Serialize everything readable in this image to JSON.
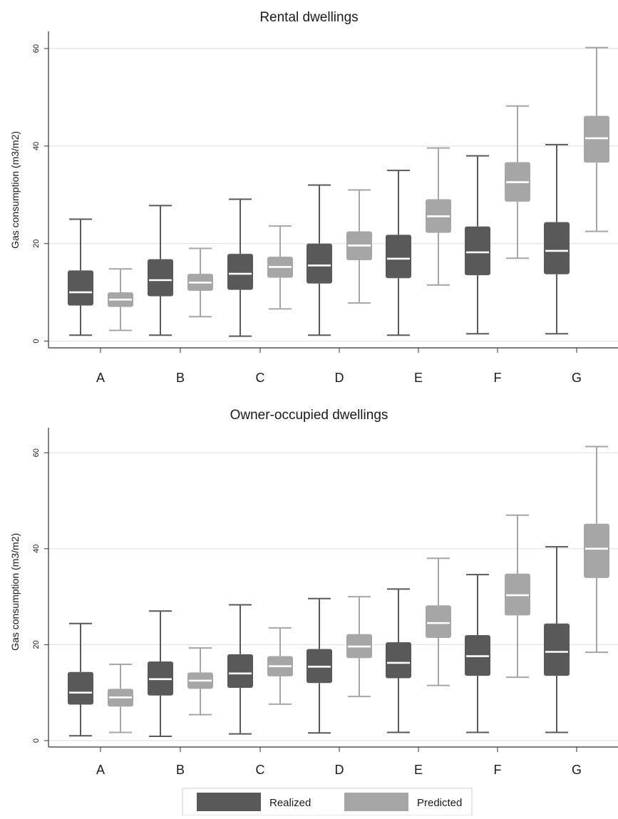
{
  "colors": {
    "realized": "#595959",
    "predicted": "#a6a6a6",
    "median": "#ffffff",
    "grid": "#e3e3e3",
    "axis": "#333333"
  },
  "legend": {
    "realized_label": "Realized",
    "predicted_label": "Predicted"
  },
  "chart_data": [
    {
      "type": "box",
      "title": "Rental dwellings",
      "ylabel": "Gas consumption (m3/m2)",
      "ylim": [
        -2,
        64
      ],
      "yticks": [
        0,
        20,
        40,
        60
      ],
      "ytick_labels": [
        "0",
        "20",
        "40",
        "60"
      ],
      "grid": true,
      "categories": [
        "A",
        "B",
        "C",
        "D",
        "E",
        "F",
        "G"
      ],
      "series": [
        {
          "name": "Realized",
          "boxes": [
            {
              "min": 1.2,
              "q1": 7.3,
              "median": 10.0,
              "q3": 14.5,
              "max": 25.0
            },
            {
              "min": 1.2,
              "q1": 9.2,
              "median": 12.5,
              "q3": 16.8,
              "max": 27.8
            },
            {
              "min": 1.0,
              "q1": 10.5,
              "median": 13.8,
              "q3": 17.9,
              "max": 29.1
            },
            {
              "min": 1.2,
              "q1": 11.8,
              "median": 15.5,
              "q3": 20.0,
              "max": 32.0
            },
            {
              "min": 1.2,
              "q1": 12.9,
              "median": 16.9,
              "q3": 21.8,
              "max": 35.0
            },
            {
              "min": 1.5,
              "q1": 13.5,
              "median": 18.2,
              "q3": 23.5,
              "max": 38.0
            },
            {
              "min": 1.5,
              "q1": 13.7,
              "median": 18.5,
              "q3": 24.4,
              "max": 40.3
            }
          ]
        },
        {
          "name": "Predicted",
          "boxes": [
            {
              "min": 2.2,
              "q1": 7.0,
              "median": 8.5,
              "q3": 10.0,
              "max": 14.8
            },
            {
              "min": 5.0,
              "q1": 10.3,
              "median": 12.0,
              "q3": 13.8,
              "max": 19.0
            },
            {
              "min": 6.6,
              "q1": 13.0,
              "median": 15.2,
              "q3": 17.3,
              "max": 23.6
            },
            {
              "min": 7.8,
              "q1": 16.6,
              "median": 19.6,
              "q3": 22.5,
              "max": 31.0
            },
            {
              "min": 11.5,
              "q1": 22.2,
              "median": 25.6,
              "q3": 29.1,
              "max": 39.6
            },
            {
              "min": 17.0,
              "q1": 28.6,
              "median": 32.6,
              "q3": 36.7,
              "max": 48.2
            },
            {
              "min": 22.5,
              "q1": 36.6,
              "median": 41.6,
              "q3": 46.2,
              "max": 60.2
            }
          ]
        }
      ]
    },
    {
      "type": "box",
      "title": "Owner-occupied dwellings",
      "ylabel": "Gas consumption (m3/m2)",
      "ylim": [
        -2,
        64
      ],
      "yticks": [
        0,
        20,
        40,
        60
      ],
      "ytick_labels": [
        "0",
        "20",
        "40",
        "60"
      ],
      "grid": true,
      "categories": [
        "A",
        "B",
        "C",
        "D",
        "E",
        "F",
        "G"
      ],
      "series": [
        {
          "name": "Realized",
          "boxes": [
            {
              "min": 1.0,
              "q1": 7.5,
              "median": 10.0,
              "q3": 14.3,
              "max": 24.4
            },
            {
              "min": 0.9,
              "q1": 9.4,
              "median": 12.8,
              "q3": 16.5,
              "max": 27.0
            },
            {
              "min": 1.4,
              "q1": 11.0,
              "median": 14.0,
              "q3": 18.0,
              "max": 28.3
            },
            {
              "min": 1.6,
              "q1": 12.0,
              "median": 15.4,
              "q3": 19.1,
              "max": 29.6
            },
            {
              "min": 1.7,
              "q1": 13.0,
              "median": 16.2,
              "q3": 20.5,
              "max": 31.6
            },
            {
              "min": 1.7,
              "q1": 13.5,
              "median": 17.6,
              "q3": 22.0,
              "max": 34.6
            },
            {
              "min": 1.7,
              "q1": 13.5,
              "median": 18.5,
              "q3": 24.4,
              "max": 40.4
            }
          ]
        },
        {
          "name": "Predicted",
          "boxes": [
            {
              "min": 1.7,
              "q1": 7.1,
              "median": 9.0,
              "q3": 10.8,
              "max": 15.9
            },
            {
              "min": 5.4,
              "q1": 10.8,
              "median": 12.5,
              "q3": 14.2,
              "max": 19.3
            },
            {
              "min": 7.6,
              "q1": 13.4,
              "median": 15.5,
              "q3": 17.6,
              "max": 23.5
            },
            {
              "min": 9.2,
              "q1": 17.2,
              "median": 19.6,
              "q3": 22.2,
              "max": 30.0
            },
            {
              "min": 11.5,
              "q1": 21.4,
              "median": 24.5,
              "q3": 28.2,
              "max": 38.0
            },
            {
              "min": 13.2,
              "q1": 26.1,
              "median": 30.3,
              "q3": 34.8,
              "max": 47.0
            },
            {
              "min": 18.4,
              "q1": 33.9,
              "median": 40.0,
              "q3": 45.2,
              "max": 61.3
            }
          ]
        }
      ]
    }
  ]
}
